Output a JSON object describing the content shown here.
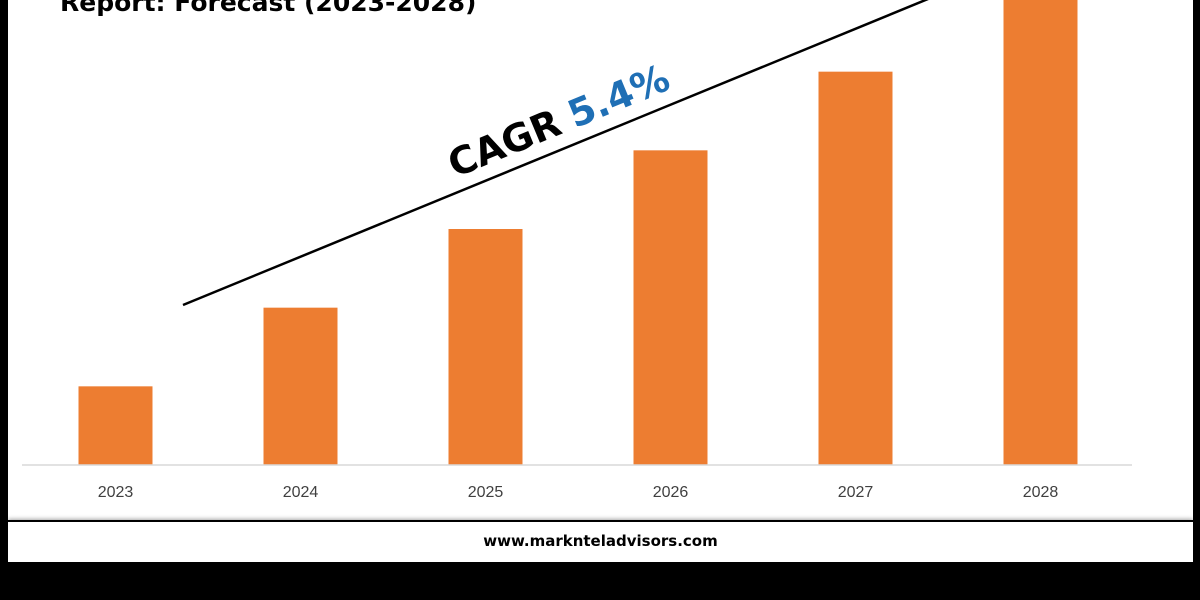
{
  "chart_data": {
    "type": "bar",
    "title": "Report: Forecast (2023-2028)",
    "categories": [
      "2023",
      "2024",
      "2025",
      "2026",
      "2027",
      "2028"
    ],
    "values": [
      1.0,
      2.0,
      3.0,
      4.0,
      5.0,
      6.0
    ],
    "ylim": [
      0,
      6
    ],
    "grid": false,
    "annotation": {
      "label": "CAGR",
      "value": "5.4%"
    }
  },
  "colors": {
    "bar": "#ED7D31",
    "cagr_value": "#1F6FB5",
    "text": "#000000",
    "axis": "#D9D9D9",
    "tick_label": "#404040"
  },
  "footer": {
    "website": "www.marknteladvisors.com"
  }
}
